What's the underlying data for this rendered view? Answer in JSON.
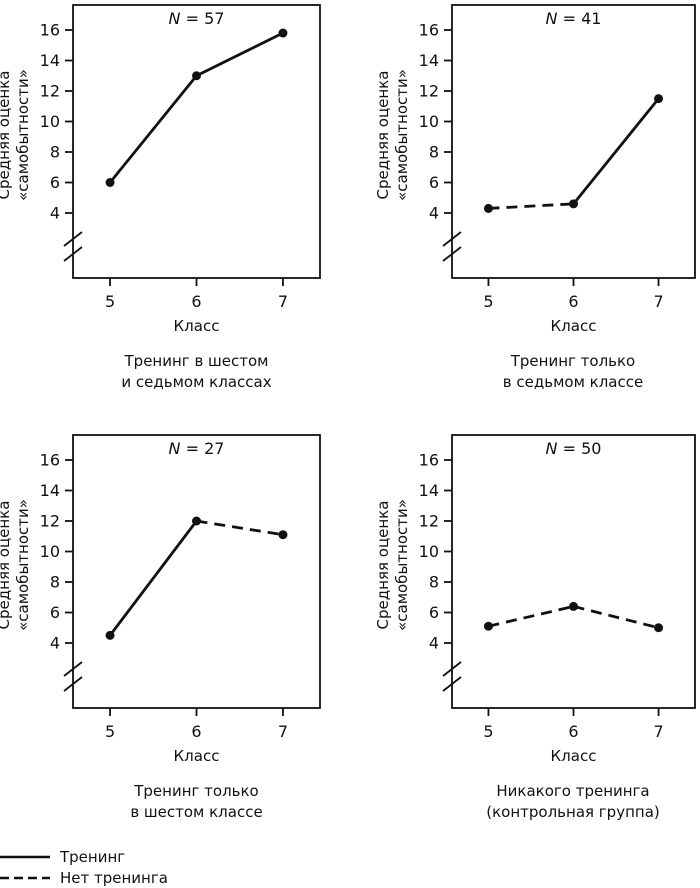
{
  "chart_data": {
    "type": "line",
    "title": "",
    "x": [
      "5",
      "6",
      "7"
    ],
    "xlabel": "Класс",
    "ylabel": "Средняя оценка «самобытности»",
    "ylabel_lines": [
      "Средняя оценка",
      "«самобытности»"
    ],
    "yticks": [
      4,
      6,
      8,
      10,
      12,
      14,
      16
    ],
    "ylim": [
      4,
      16
    ],
    "axis_break": true,
    "grid": false,
    "line_color": "#111111",
    "panels": [
      {
        "n_var": "N",
        "n_rest": "= 57",
        "caption_lines": [
          "Тренинг в шестом",
          "и седьмом классах"
        ],
        "values": [
          6.0,
          13.0,
          15.8
        ],
        "segment_styles": [
          "solid",
          "solid"
        ]
      },
      {
        "n_var": "N",
        "n_rest": "= 41",
        "caption_lines": [
          "Тренинг только",
          "в седьмом классе"
        ],
        "values": [
          4.3,
          4.6,
          11.5
        ],
        "segment_styles": [
          "dashed",
          "solid"
        ]
      },
      {
        "n_var": "N",
        "n_rest": "= 27",
        "caption_lines": [
          "Тренинг только",
          "в шестом классе"
        ],
        "values": [
          4.5,
          12.0,
          11.1
        ],
        "segment_styles": [
          "solid",
          "dashed"
        ]
      },
      {
        "n_var": "N",
        "n_rest": "= 50",
        "caption_lines": [
          "Никакого тренинга",
          "(контрольная группа)"
        ],
        "values": [
          5.1,
          6.4,
          5.0
        ],
        "segment_styles": [
          "dashed",
          "dashed"
        ]
      }
    ],
    "legend": [
      {
        "style": "solid",
        "label": "Тренинг"
      },
      {
        "style": "dashed",
        "label": "Нет тренинга"
      }
    ]
  }
}
